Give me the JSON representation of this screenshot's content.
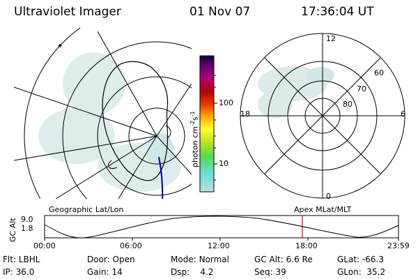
{
  "header": {
    "instrument": "Ultraviolet Imager",
    "date": "01 Nov 07",
    "time": "17:36:04 UT"
  },
  "geo_panel": {
    "label": "Geographic Lat/Lon"
  },
  "polar_panel": {
    "label": "Apex MLat/MLT",
    "mlt_labels": {
      "top": "12",
      "left": "18",
      "right": "6",
      "bottom": "0"
    },
    "lat_labels": [
      "60",
      "70",
      "80"
    ]
  },
  "colorbar": {
    "unit_label": "photon cm-2s-1",
    "unit_parts": {
      "main": "photon cm",
      "exp1": "-2",
      "s": "s",
      "exp2": "-1"
    },
    "scale": "log",
    "tick_labels": [
      "100",
      "10"
    ],
    "colors": [
      "#c8dcdc",
      "#6adcdc",
      "#50dc50",
      "#c8e620",
      "#ffff30",
      "#ffb000",
      "#e63c00",
      "#b40000",
      "#b40078",
      "#64006e",
      "#140040"
    ]
  },
  "orbit_plot": {
    "ylabel": "GC Alt",
    "yticks": [
      "9.0",
      "1.8"
    ],
    "xticks": [
      "00:00",
      "06:00",
      "12:00",
      "18:00",
      "23:59"
    ],
    "current_marker_label": "18:00"
  },
  "info": {
    "flt_label": "Flt:",
    "flt_value": "LBHL",
    "ip_label": "IP:",
    "ip_value": "36.0",
    "door_label": "Door:",
    "door_value": "Open",
    "gain_label": "Gain:",
    "gain_value": "14",
    "mode_label": "Mode:",
    "mode_value": "Normal",
    "dsp_label": "Dsp:",
    "dsp_value": "4.2",
    "gcalt_label": "GC Alt:",
    "gcalt_value": "6.6 Re",
    "seq_label": "Seq:",
    "seq_value": "39",
    "glat_label": "GLat:",
    "glat_value": "-66.3",
    "glon_label": "GLon:",
    "glon_value": "35.2"
  }
}
